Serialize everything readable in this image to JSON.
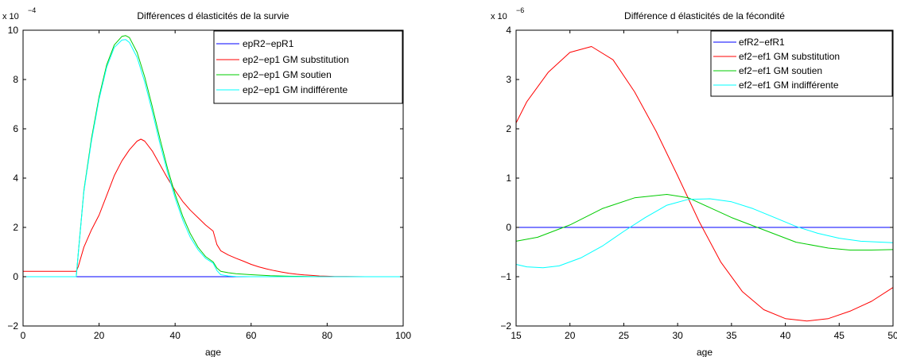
{
  "chart_data": [
    {
      "type": "line",
      "title": "Différences d élasticités de la survie",
      "xlabel": "age",
      "ylabel": "",
      "y_multiplier": "x 10",
      "y_exponent": "−4",
      "xlim": [
        0,
        100
      ],
      "ylim": [
        -2,
        10
      ],
      "xticks": [
        0,
        20,
        40,
        60,
        80,
        100
      ],
      "xtick_labels": [
        "0",
        "20",
        "40",
        "60",
        "80",
        "100"
      ],
      "yticks": [
        -2,
        0,
        2,
        4,
        6,
        8,
        10
      ],
      "ytick_labels": [
        "−2",
        "0",
        "2",
        "4",
        "6",
        "8",
        "10"
      ],
      "grid": false,
      "legend_position": "top-right",
      "series": [
        {
          "name": "epR2−epR1",
          "color": "#0000ff",
          "x": [
            0,
            100
          ],
          "y": [
            0,
            0
          ]
        },
        {
          "name": "ep2−ep1 GM substitution",
          "color": "#ff0000",
          "x": [
            0,
            14,
            14.5,
            16,
            18,
            20,
            22,
            24,
            26,
            28,
            30,
            31,
            32,
            34,
            36,
            38,
            40,
            42,
            44,
            46,
            48,
            50,
            51,
            52,
            54,
            56,
            58,
            60,
            62,
            64,
            66,
            68,
            70,
            72,
            74,
            76,
            78,
            80,
            82,
            85,
            90,
            100
          ],
          "y": [
            0.22,
            0.22,
            0.4,
            1.2,
            1.9,
            2.5,
            3.3,
            4.1,
            4.7,
            5.15,
            5.5,
            5.58,
            5.5,
            5.1,
            4.55,
            4.0,
            3.5,
            3.05,
            2.7,
            2.4,
            2.1,
            1.85,
            1.3,
            1.05,
            0.88,
            0.75,
            0.63,
            0.5,
            0.4,
            0.32,
            0.25,
            0.19,
            0.14,
            0.1,
            0.07,
            0.05,
            0.03,
            0.02,
            0.01,
            0.005,
            0,
            0
          ]
        },
        {
          "name": "ep2−ep1 GM soutien",
          "color": "#00cc00",
          "x": [
            0,
            14,
            14.5,
            16,
            18,
            20,
            22,
            24,
            26,
            27,
            28,
            30,
            32,
            34,
            36,
            38,
            40,
            42,
            44,
            46,
            48,
            50,
            51,
            52,
            54,
            56,
            60,
            65,
            70,
            75,
            80,
            100
          ],
          "y": [
            0,
            0,
            0.9,
            3.5,
            5.6,
            7.3,
            8.6,
            9.4,
            9.75,
            9.78,
            9.7,
            9.1,
            8.1,
            6.9,
            5.6,
            4.4,
            3.35,
            2.45,
            1.75,
            1.2,
            0.82,
            0.6,
            0.35,
            0.22,
            0.16,
            0.12,
            0.08,
            0.04,
            0.02,
            0.01,
            0,
            0
          ]
        },
        {
          "name": "ep2−ep1  GM indifférente",
          "color": "#00ffff",
          "x": [
            0,
            14,
            14.5,
            16,
            18,
            20,
            22,
            24,
            26,
            27,
            28,
            30,
            32,
            34,
            36,
            38,
            40,
            42,
            44,
            46,
            48,
            50,
            51,
            52,
            54,
            56,
            60,
            100
          ],
          "y": [
            0,
            0,
            0.9,
            3.45,
            5.5,
            7.2,
            8.5,
            9.3,
            9.6,
            9.62,
            9.5,
            8.9,
            7.9,
            6.7,
            5.4,
            4.25,
            3.2,
            2.3,
            1.6,
            1.1,
            0.75,
            0.55,
            0.25,
            0.08,
            0.03,
            0.01,
            0,
            0
          ]
        }
      ]
    },
    {
      "type": "line",
      "title": "Différence d élasticités de la fécondité",
      "xlabel": "age",
      "ylabel": "",
      "y_multiplier": "x 10",
      "y_exponent": "−6",
      "xlim": [
        15,
        50
      ],
      "ylim": [
        -2,
        4
      ],
      "xticks": [
        15,
        20,
        25,
        30,
        35,
        40,
        45,
        50
      ],
      "xtick_labels": [
        "15",
        "20",
        "25",
        "30",
        "35",
        "40",
        "45",
        "50"
      ],
      "yticks": [
        -2,
        -1,
        0,
        1,
        2,
        3,
        4
      ],
      "ytick_labels": [
        "−2",
        "−1",
        "0",
        "1",
        "2",
        "3",
        "4"
      ],
      "grid": false,
      "legend_position": "top-right",
      "series": [
        {
          "name": "efR2−efR1",
          "color": "#0000ff",
          "x": [
            15,
            50
          ],
          "y": [
            0,
            0
          ]
        },
        {
          "name": "ef2−ef1 GM substitution",
          "color": "#ff0000",
          "x": [
            15,
            16,
            18,
            20,
            22,
            24,
            26,
            28,
            30,
            32,
            34,
            36,
            38,
            40,
            42,
            44,
            46,
            48,
            50
          ],
          "y": [
            2.12,
            2.55,
            3.15,
            3.55,
            3.67,
            3.4,
            2.75,
            1.95,
            1.05,
            0.12,
            -0.7,
            -1.3,
            -1.67,
            -1.85,
            -1.9,
            -1.85,
            -1.7,
            -1.5,
            -1.22
          ]
        },
        {
          "name": "ef2−ef1 GM soutien",
          "color": "#00cc00",
          "x": [
            15,
            17,
            20,
            23,
            26,
            29,
            31,
            33,
            35,
            38,
            41,
            44,
            46,
            48,
            50
          ],
          "y": [
            -0.28,
            -0.2,
            0.05,
            0.38,
            0.6,
            0.67,
            0.6,
            0.4,
            0.2,
            -0.05,
            -0.3,
            -0.42,
            -0.46,
            -0.46,
            -0.45
          ]
        },
        {
          "name": "ef2−ef1 GM indifférente",
          "color": "#00ffff",
          "x": [
            15,
            16,
            17.5,
            19,
            21,
            23,
            25,
            27,
            29,
            31,
            33,
            35,
            37,
            39,
            41,
            43,
            45,
            47,
            50
          ],
          "y": [
            -0.75,
            -0.8,
            -0.82,
            -0.78,
            -0.62,
            -0.38,
            -0.08,
            0.2,
            0.45,
            0.57,
            0.58,
            0.52,
            0.38,
            0.2,
            0.02,
            -0.12,
            -0.22,
            -0.28,
            -0.31
          ]
        }
      ]
    }
  ]
}
